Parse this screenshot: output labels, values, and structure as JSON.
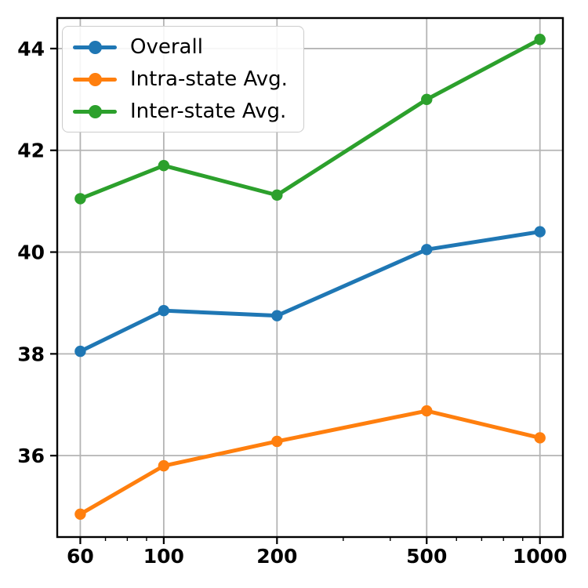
{
  "chart_data": {
    "type": "line",
    "x": [
      60,
      100,
      200,
      500,
      1000
    ],
    "xscale": "log",
    "series": [
      {
        "name": "Overall",
        "color": "#1f77b4",
        "values": [
          38.05,
          38.85,
          38.75,
          40.05,
          40.4
        ]
      },
      {
        "name": "Intra-state Avg.",
        "color": "#ff7f0e",
        "values": [
          34.85,
          35.8,
          36.28,
          36.88,
          36.35
        ]
      },
      {
        "name": "Inter-state Avg.",
        "color": "#2ca02c",
        "values": [
          41.05,
          41.7,
          41.12,
          43.0,
          44.18
        ]
      }
    ],
    "title": "",
    "xlabel": "",
    "ylabel": "",
    "xticks": [
      60,
      100,
      200,
      500,
      1000
    ],
    "xtick_labels": [
      "60",
      "100",
      "200",
      "500",
      "1000"
    ],
    "xminorticks": [
      70,
      80,
      90,
      300,
      400,
      600,
      700,
      800,
      900
    ],
    "yticks": [
      36,
      38,
      40,
      42,
      44
    ],
    "ytick_labels": [
      "36",
      "38",
      "40",
      "42",
      "44"
    ],
    "xlim": [
      52.1,
      1151
    ],
    "ylim": [
      34.4,
      44.6
    ],
    "grid": true,
    "grid_color": "#b4b4b4",
    "axis_color": "#000000",
    "legend_position": "upper-left",
    "marker": "circle"
  }
}
